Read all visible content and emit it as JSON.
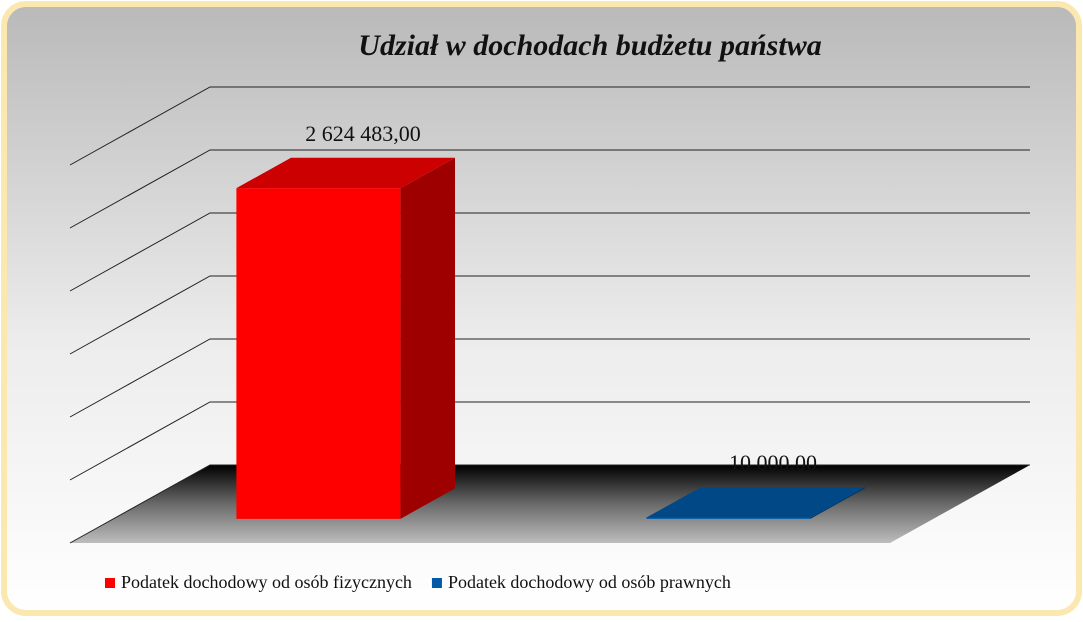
{
  "chart_data": {
    "type": "bar3d",
    "title": "Udział w dochodach budżetu państwa",
    "categories": [
      null
    ],
    "series": [
      {
        "name": "Podatek dochodowy od osób fizycznych",
        "color": "#ff0000",
        "values": [
          2624483
        ],
        "value_labels": [
          "2 624 483,00"
        ]
      },
      {
        "name": "Podatek dochodowy od osób prawnych",
        "color": "#005aa8",
        "values": [
          10000
        ],
        "value_labels": [
          "10 000,00"
        ]
      }
    ],
    "ylim": [
      0,
      3000000
    ],
    "yticks": [
      0,
      500000,
      1000000,
      1500000,
      2000000,
      2500000,
      3000000
    ],
    "grid": true,
    "legend": "bottom"
  }
}
